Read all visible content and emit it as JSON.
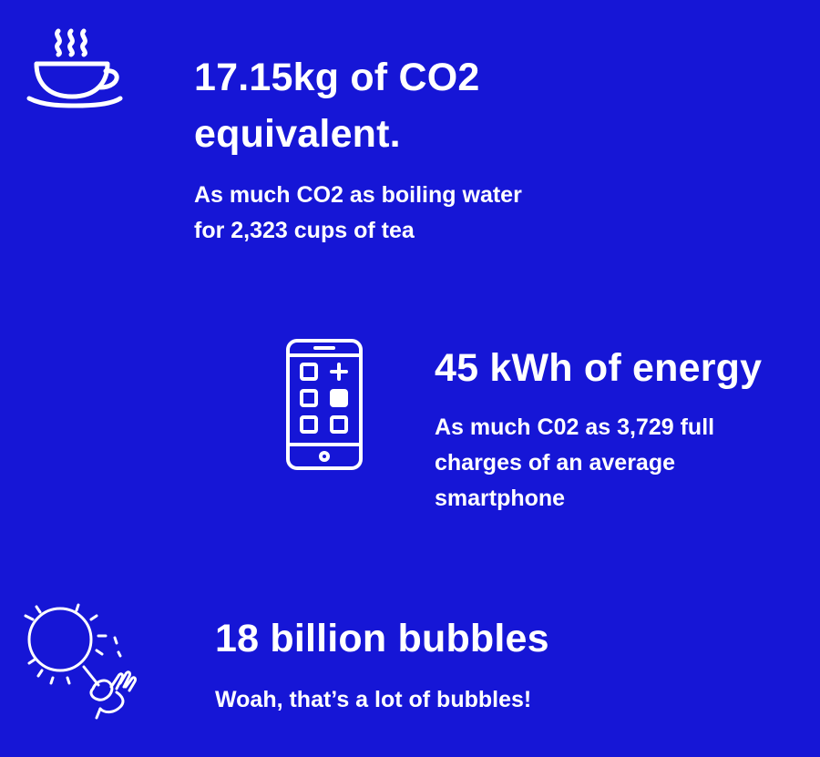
{
  "colors": {
    "background": "#1616d6",
    "foreground": "#ffffff"
  },
  "stats": [
    {
      "icon": "tea-cup-icon",
      "title": "17.15kg of CO2 equivalent.",
      "description": "As much CO2 as boiling water for 2,323 cups of tea"
    },
    {
      "icon": "smartphone-icon",
      "title": "45 kWh of energy",
      "description": "As much C02 as 3,729 full charges of an average smartphone"
    },
    {
      "icon": "bubble-wand-icon",
      "title": "18 billion bubbles",
      "description": "Woah, that’s a lot of bubbles!"
    }
  ]
}
